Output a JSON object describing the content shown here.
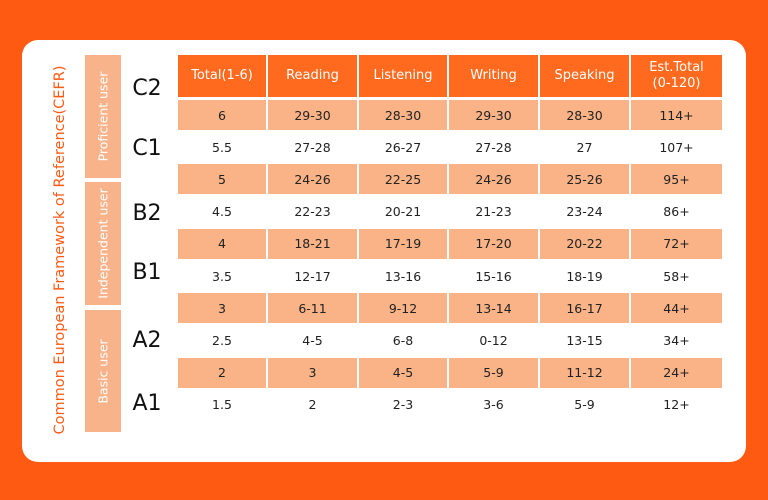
{
  "side_title": "Common European Framework of Reference(CEFR)",
  "groups": [
    "Proficient user",
    "Independent user",
    "Basic user"
  ],
  "levels": [
    "C2",
    "C1",
    "B2",
    "B1",
    "A2",
    "A1"
  ],
  "table": {
    "header": [
      "Total(1-6)",
      "Reading",
      "Listening",
      "Writing",
      "Speaking",
      "Est.Total\n(0-120)"
    ],
    "rows": [
      [
        "6",
        "29-30",
        "28-30",
        "29-30",
        "28-30",
        "114+"
      ],
      [
        "5.5",
        "27-28",
        "26-27",
        "27-28",
        "27",
        "107+"
      ],
      [
        "5",
        "24-26",
        "22-25",
        "24-26",
        "25-26",
        "95+"
      ],
      [
        "4.5",
        "22-23",
        "20-21",
        "21-23",
        "23-24",
        "86+"
      ],
      [
        "4",
        "18-21",
        "17-19",
        "17-20",
        "20-22",
        "72+"
      ],
      [
        "3.5",
        "12-17",
        "13-16",
        "15-16",
        "18-19",
        "58+"
      ],
      [
        "3",
        "6-11",
        "9-12",
        "13-14",
        "16-17",
        "44+"
      ],
      [
        "2.5",
        "4-5",
        "6-8",
        "0-12",
        "13-15",
        "34+"
      ],
      [
        "2",
        "3",
        "4-5",
        "5-9",
        "11-12",
        "24+"
      ],
      [
        "1.5",
        "2",
        "2-3",
        "3-6",
        "5-9",
        "12+"
      ]
    ]
  }
}
